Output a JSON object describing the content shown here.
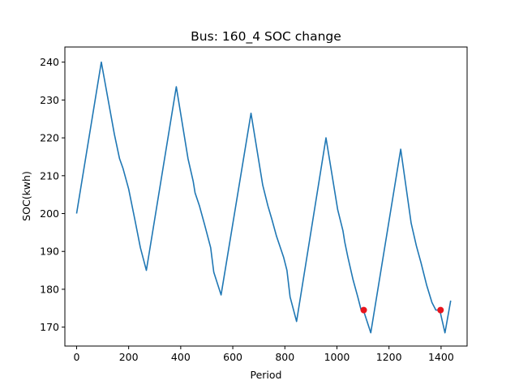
{
  "chart_data": {
    "type": "line",
    "title": "Bus: 160_4 SOC change",
    "xlabel": "Period",
    "ylabel": "SOC(kwh)",
    "xlim": [
      -45,
      1500
    ],
    "ylim": [
      165,
      244
    ],
    "xticks": [
      0,
      200,
      400,
      600,
      800,
      1000,
      1200,
      1400
    ],
    "yticks": [
      170,
      180,
      190,
      200,
      210,
      220,
      230,
      240
    ],
    "grid": false,
    "series": [
      {
        "color": "#1f77b4",
        "x": [
          0,
          95,
          145,
          165,
          178,
          200,
          225,
          245,
          268,
          383,
          428,
          448,
          455,
          472,
          492,
          515,
          527,
          555,
          670,
          715,
          735,
          750,
          768,
          795,
          808,
          820,
          845,
          958,
          1003,
          1023,
          1030,
          1042,
          1062,
          1080,
          1093,
          1103,
          1130,
          1245,
          1285,
          1305,
          1315,
          1323,
          1345,
          1365,
          1380,
          1395,
          1415,
          1437
        ],
        "y": [
          200,
          240,
          221,
          214.5,
          212,
          206.5,
          198,
          191,
          185,
          233.5,
          214.5,
          208.5,
          205.5,
          202,
          197,
          191,
          184.5,
          178.5,
          226.5,
          207.5,
          202,
          198.5,
          194,
          188.5,
          185,
          178,
          171.5,
          220,
          201,
          195.5,
          192.5,
          188.5,
          182.5,
          178,
          174.5,
          174.2,
          168.5,
          217,
          197.5,
          191.5,
          189,
          187,
          181,
          176.5,
          174.5,
          174.5,
          168.5,
          177
        ]
      }
    ],
    "markers": {
      "color": "#e8141c",
      "points": [
        [
          1103,
          174.5
        ],
        [
          1398,
          174.5
        ]
      ]
    }
  }
}
